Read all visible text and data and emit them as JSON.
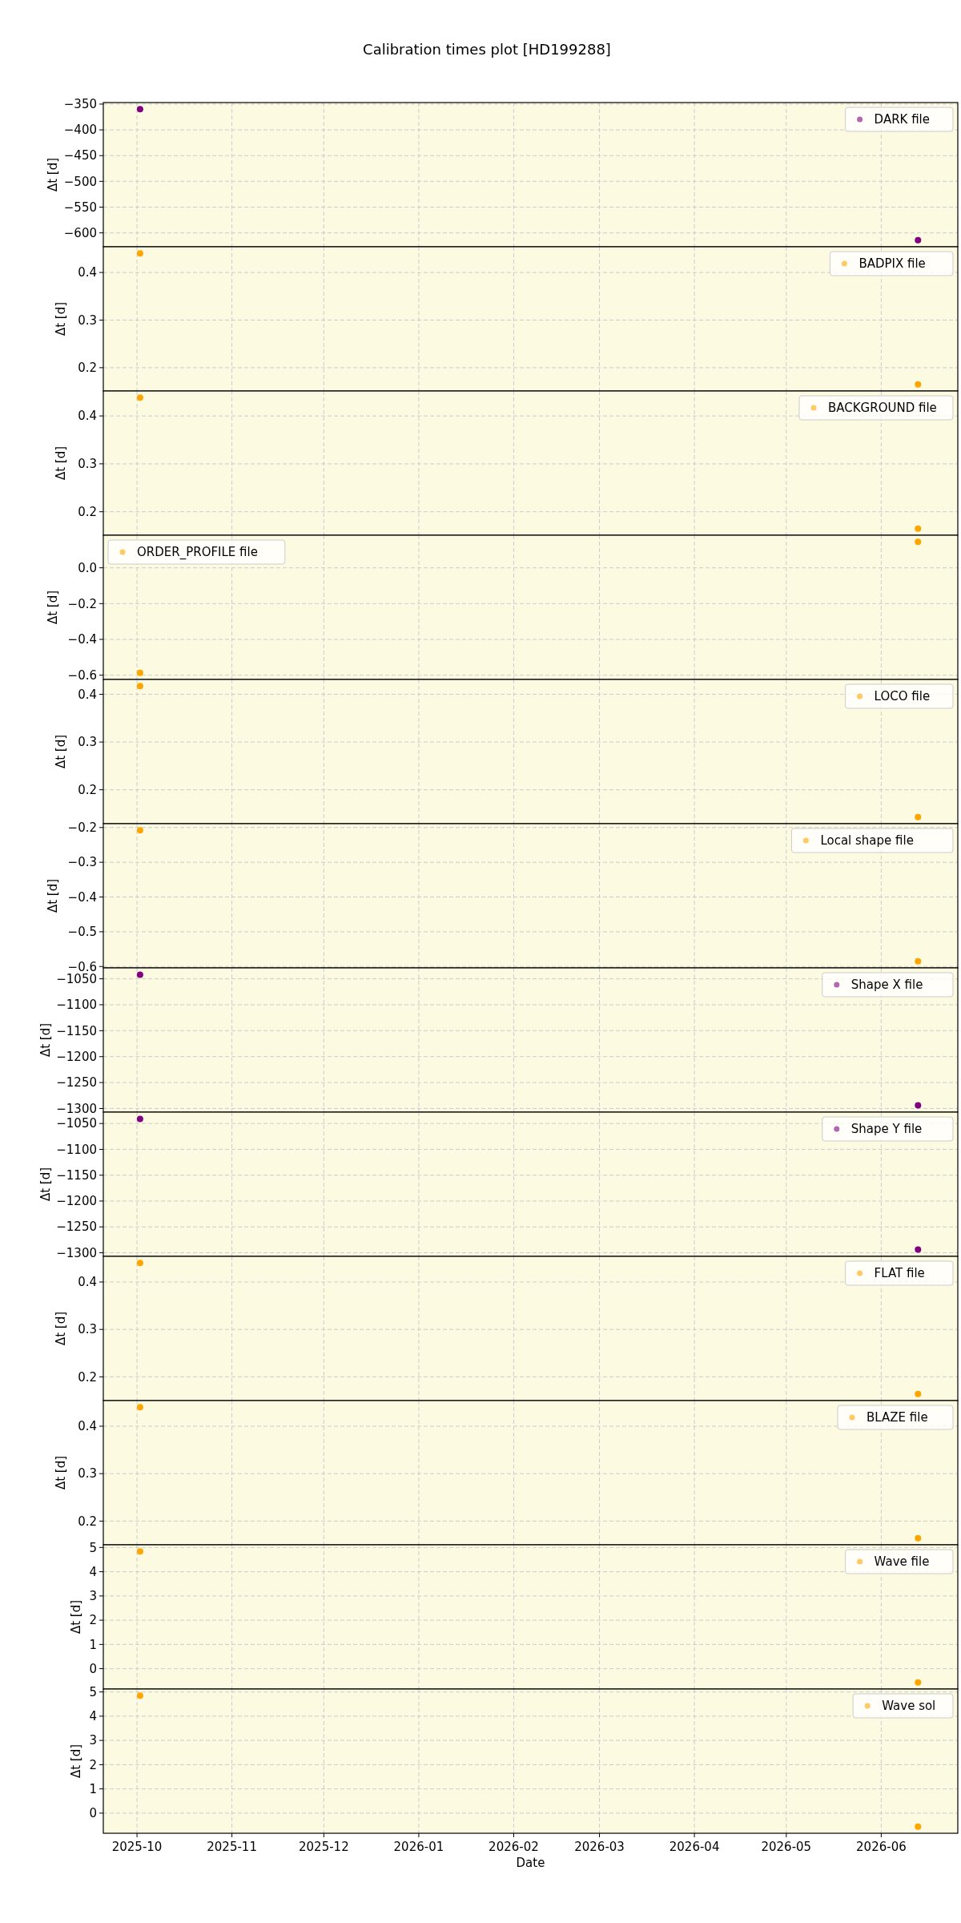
{
  "chart_data": [
    {
      "type": "scatter",
      "title": "Calibration times plot [HD199288]",
      "ylabel": "Δt [d]",
      "x": [
        "2025-10-02",
        "2026-06-13"
      ],
      "series": [
        {
          "name": "DARK file",
          "color": "#800080",
          "values": [
            -360,
            -614
          ]
        }
      ],
      "xlim": [
        "2025-09-20",
        "2026-06-26"
      ],
      "xticks": [
        "2025-10",
        "2025-11",
        "2025-12",
        "2026-01",
        "2026-02",
        "2026-03",
        "2026-04",
        "2026-05",
        "2026-06"
      ],
      "ylim": [
        -627,
        -347
      ],
      "yticks": [
        {
          "value": -600,
          "label": "−600"
        },
        {
          "value": -550,
          "label": "−550"
        },
        {
          "value": -500,
          "label": "−500"
        },
        {
          "value": -450,
          "label": "−450"
        },
        {
          "value": -400,
          "label": "−400"
        },
        {
          "value": -350,
          "label": "−350"
        }
      ],
      "grid": true,
      "legend": "top right",
      "marker": "circle",
      "tick_labels": "y"
    },
    {
      "type": "scatter",
      "ylabel": "Δt [d]",
      "x": [
        "2025-10-02",
        "2026-06-13"
      ],
      "series": [
        {
          "name": "BADPIX file",
          "color": "#ffa500",
          "values": [
            0.44,
            0.165
          ]
        }
      ],
      "xlim": [
        "2025-09-20",
        "2026-06-26"
      ],
      "xticks": [
        "2025-10",
        "2025-11",
        "2025-12",
        "2026-01",
        "2026-02",
        "2026-03",
        "2026-04",
        "2026-05",
        "2026-06"
      ],
      "ylim": [
        0.151,
        0.454
      ],
      "yticks": [
        0.2,
        0.3,
        0.4
      ],
      "grid": true,
      "legend": "top right",
      "marker": "circle",
      "tick_labels": "y"
    },
    {
      "type": "scatter",
      "ylabel": "Δt [d]",
      "x": [
        "2025-10-02",
        "2026-06-13"
      ],
      "series": [
        {
          "name": "BACKGROUND file",
          "color": "#ffa500",
          "values": [
            0.438,
            0.165
          ]
        }
      ],
      "xlim": [
        "2025-09-20",
        "2026-06-26"
      ],
      "xticks": [
        "2025-10",
        "2025-11",
        "2025-12",
        "2026-01",
        "2026-02",
        "2026-03",
        "2026-04",
        "2026-05",
        "2026-06"
      ],
      "ylim": [
        0.151,
        0.452
      ],
      "yticks": [
        0.2,
        0.3,
        0.4
      ],
      "grid": true,
      "legend": "top right",
      "marker": "circle",
      "tick_labels": "y"
    },
    {
      "type": "scatter",
      "ylabel": "Δt [d]",
      "x": [
        "2025-10-02",
        "2026-06-13"
      ],
      "series": [
        {
          "name": "ORDER_PROFILE file",
          "color": "#ffa500",
          "values": [
            -0.587,
            0.145
          ]
        }
      ],
      "xlim": [
        "2025-09-20",
        "2026-06-26"
      ],
      "xticks": [
        "2025-10",
        "2025-11",
        "2025-12",
        "2026-01",
        "2026-02",
        "2026-03",
        "2026-04",
        "2026-05",
        "2026-06"
      ],
      "ylim": [
        -0.624,
        0.182
      ],
      "yticks": [
        {
          "value": -0.6,
          "label": "−0.6"
        },
        {
          "value": -0.4,
          "label": "−0.4"
        },
        {
          "value": -0.2,
          "label": "−0.2"
        },
        {
          "value": 0,
          "label": "0.0"
        }
      ],
      "grid": true,
      "legend": "top left",
      "marker": "circle",
      "tick_labels": "y"
    },
    {
      "type": "scatter",
      "ylabel": "Δt [d]",
      "x": [
        "2025-10-02",
        "2026-06-13"
      ],
      "series": [
        {
          "name": "LOCO file",
          "color": "#ffa500",
          "values": [
            0.417,
            0.143
          ]
        }
      ],
      "xlim": [
        "2025-09-20",
        "2026-06-26"
      ],
      "xticks": [
        "2025-10",
        "2025-11",
        "2025-12",
        "2026-01",
        "2026-02",
        "2026-03",
        "2026-04",
        "2026-05",
        "2026-06"
      ],
      "ylim": [
        0.129,
        0.431
      ],
      "yticks": [
        0.2,
        0.3,
        0.4
      ],
      "grid": true,
      "legend": "top right",
      "marker": "circle",
      "tick_labels": "y"
    },
    {
      "type": "scatter",
      "ylabel": "Δt [d]",
      "x": [
        "2025-10-02",
        "2026-06-13"
      ],
      "series": [
        {
          "name": "Local shape file",
          "color": "#ffa500",
          "values": [
            -0.208,
            -0.585
          ]
        }
      ],
      "xlim": [
        "2025-09-20",
        "2026-06-26"
      ],
      "xticks": [
        "2025-10",
        "2025-11",
        "2025-12",
        "2026-01",
        "2026-02",
        "2026-03",
        "2026-04",
        "2026-05",
        "2026-06"
      ],
      "ylim": [
        -0.604,
        -0.189
      ],
      "yticks": [
        {
          "value": -0.6,
          "label": "−0.6"
        },
        {
          "value": -0.5,
          "label": "−0.5"
        },
        {
          "value": -0.4,
          "label": "−0.4"
        },
        {
          "value": -0.3,
          "label": "−0.3"
        },
        {
          "value": -0.2,
          "label": "−0.2"
        }
      ],
      "grid": true,
      "legend": "top right",
      "marker": "circle",
      "tick_labels": "y"
    },
    {
      "type": "scatter",
      "ylabel": "Δt [d]",
      "x": [
        "2025-10-02",
        "2026-06-13"
      ],
      "series": [
        {
          "name": "Shape X file",
          "color": "#800080",
          "values": [
            -1042,
            -1294
          ]
        }
      ],
      "xlim": [
        "2025-09-20",
        "2026-06-26"
      ],
      "xticks": [
        "2025-10",
        "2025-11",
        "2025-12",
        "2026-01",
        "2026-02",
        "2026-03",
        "2026-04",
        "2026-05",
        "2026-06"
      ],
      "ylim": [
        -1307,
        -1029
      ],
      "yticks": [
        {
          "value": -1300,
          "label": "−1300"
        },
        {
          "value": -1250,
          "label": "−1250"
        },
        {
          "value": -1200,
          "label": "−1200"
        },
        {
          "value": -1150,
          "label": "−1150"
        },
        {
          "value": -1100,
          "label": "−1100"
        },
        {
          "value": -1050,
          "label": "−1050"
        }
      ],
      "grid": true,
      "legend": "top right",
      "marker": "circle",
      "tick_labels": "y"
    },
    {
      "type": "scatter",
      "ylabel": "Δt [d]",
      "x": [
        "2025-10-02",
        "2026-06-13"
      ],
      "series": [
        {
          "name": "Shape Y file",
          "color": "#800080",
          "values": [
            -1041,
            -1294
          ]
        }
      ],
      "xlim": [
        "2025-09-20",
        "2026-06-26"
      ],
      "xticks": [
        "2025-10",
        "2025-11",
        "2025-12",
        "2026-01",
        "2026-02",
        "2026-03",
        "2026-04",
        "2026-05",
        "2026-06"
      ],
      "ylim": [
        -1307,
        -1028
      ],
      "yticks": [
        {
          "value": -1300,
          "label": "−1300"
        },
        {
          "value": -1250,
          "label": "−1250"
        },
        {
          "value": -1200,
          "label": "−1200"
        },
        {
          "value": -1150,
          "label": "−1150"
        },
        {
          "value": -1100,
          "label": "−1100"
        },
        {
          "value": -1050,
          "label": "−1050"
        }
      ],
      "grid": true,
      "legend": "top right",
      "marker": "circle",
      "tick_labels": "y"
    },
    {
      "type": "scatter",
      "ylabel": "Δt [d]",
      "x": [
        "2025-10-02",
        "2026-06-13"
      ],
      "series": [
        {
          "name": "FLAT file",
          "color": "#ffa500",
          "values": [
            0.44,
            0.164
          ]
        }
      ],
      "xlim": [
        "2025-09-20",
        "2026-06-26"
      ],
      "xticks": [
        "2025-10",
        "2025-11",
        "2025-12",
        "2026-01",
        "2026-02",
        "2026-03",
        "2026-04",
        "2026-05",
        "2026-06"
      ],
      "ylim": [
        0.15,
        0.454
      ],
      "yticks": [
        0.2,
        0.3,
        0.4
      ],
      "grid": true,
      "legend": "top right",
      "marker": "circle",
      "tick_labels": "y"
    },
    {
      "type": "scatter",
      "ylabel": "Δt [d]",
      "x": [
        "2025-10-02",
        "2026-06-13"
      ],
      "series": [
        {
          "name": "BLAZE file",
          "color": "#ffa500",
          "values": [
            0.44,
            0.164
          ]
        }
      ],
      "xlim": [
        "2025-09-20",
        "2026-06-26"
      ],
      "xticks": [
        "2025-10",
        "2025-11",
        "2025-12",
        "2026-01",
        "2026-02",
        "2026-03",
        "2026-04",
        "2026-05",
        "2026-06"
      ],
      "ylim": [
        0.15,
        0.454
      ],
      "yticks": [
        0.2,
        0.3,
        0.4
      ],
      "grid": true,
      "legend": "top right",
      "marker": "circle",
      "tick_labels": "y"
    },
    {
      "type": "scatter",
      "ylabel": "Δt [d]",
      "x": [
        "2025-10-02",
        "2026-06-13"
      ],
      "series": [
        {
          "name": "Wave file",
          "color": "#ffa500",
          "values": [
            4.84,
            -0.57
          ]
        }
      ],
      "xlim": [
        "2025-09-20",
        "2026-06-26"
      ],
      "xticks": [
        "2025-10",
        "2025-11",
        "2025-12",
        "2026-01",
        "2026-02",
        "2026-03",
        "2026-04",
        "2026-05",
        "2026-06"
      ],
      "ylim": [
        -0.84,
        5.11
      ],
      "yticks": [
        0,
        1,
        2,
        3,
        4,
        5
      ],
      "grid": true,
      "legend": "top right",
      "marker": "circle",
      "tick_labels": "y"
    },
    {
      "type": "scatter",
      "ylabel": "Δt [d]",
      "xlabel": "Date",
      "x": [
        "2025-10-02",
        "2026-06-13"
      ],
      "series": [
        {
          "name": "Wave sol",
          "color": "#ffa500",
          "values": [
            4.85,
            -0.56
          ]
        }
      ],
      "xlim": [
        "2025-09-20",
        "2026-06-26"
      ],
      "xticks": [
        "2025-10",
        "2025-11",
        "2025-12",
        "2026-01",
        "2026-02",
        "2026-03",
        "2026-04",
        "2026-05",
        "2026-06"
      ],
      "ylim": [
        -0.83,
        5.12
      ],
      "yticks": [
        0,
        1,
        2,
        3,
        4,
        5
      ],
      "grid": true,
      "legend": "top right",
      "marker": "circle"
    }
  ]
}
